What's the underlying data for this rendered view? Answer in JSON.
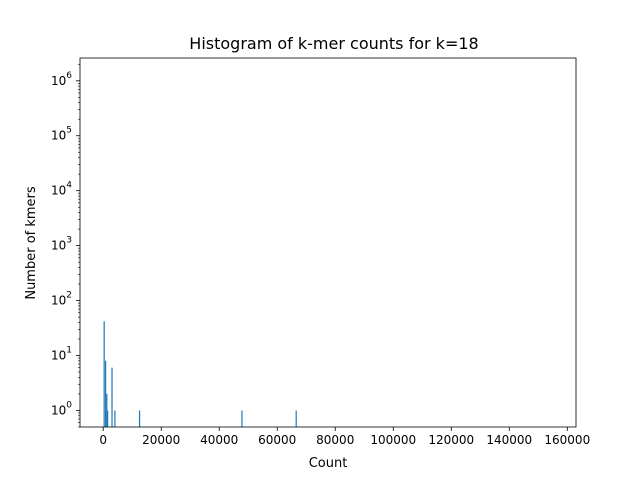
{
  "chart_data": {
    "type": "bar",
    "title": "Histogram of k-mer counts for k=18",
    "xlabel": "Count",
    "ylabel": "Number of kmers",
    "xlim": [
      -8000,
      163000
    ],
    "ylim": [
      0.5,
      2600000
    ],
    "yscale": "log",
    "grid": false,
    "bar_color": "#1f77b4",
    "x_ticks": [
      0,
      20000,
      40000,
      60000,
      80000,
      100000,
      120000,
      140000,
      160000
    ],
    "x_tick_labels": [
      "0",
      "20000",
      "40000",
      "60000",
      "80000",
      "100000",
      "120000",
      "140000",
      "160000"
    ],
    "y_ticks": [
      {
        "value": 1,
        "base": "10",
        "exp": "0"
      },
      {
        "value": 10,
        "base": "10",
        "exp": "1"
      },
      {
        "value": 100,
        "base": "10",
        "exp": "2"
      },
      {
        "value": 1000,
        "base": "10",
        "exp": "3"
      },
      {
        "value": 10000,
        "base": "10",
        "exp": "4"
      },
      {
        "value": 100000,
        "base": "10",
        "exp": "5"
      },
      {
        "value": 1000000,
        "base": "10",
        "exp": "6"
      }
    ],
    "bars": [
      {
        "x": 300,
        "y": 42
      },
      {
        "x": 800,
        "y": 8
      },
      {
        "x": 1200,
        "y": 2
      },
      {
        "x": 1500,
        "y": 1
      },
      {
        "x": 3000,
        "y": 6
      },
      {
        "x": 4000,
        "y": 1
      },
      {
        "x": 12500,
        "y": 1
      },
      {
        "x": 47800,
        "y": 1
      },
      {
        "x": 66500,
        "y": 1
      }
    ]
  }
}
